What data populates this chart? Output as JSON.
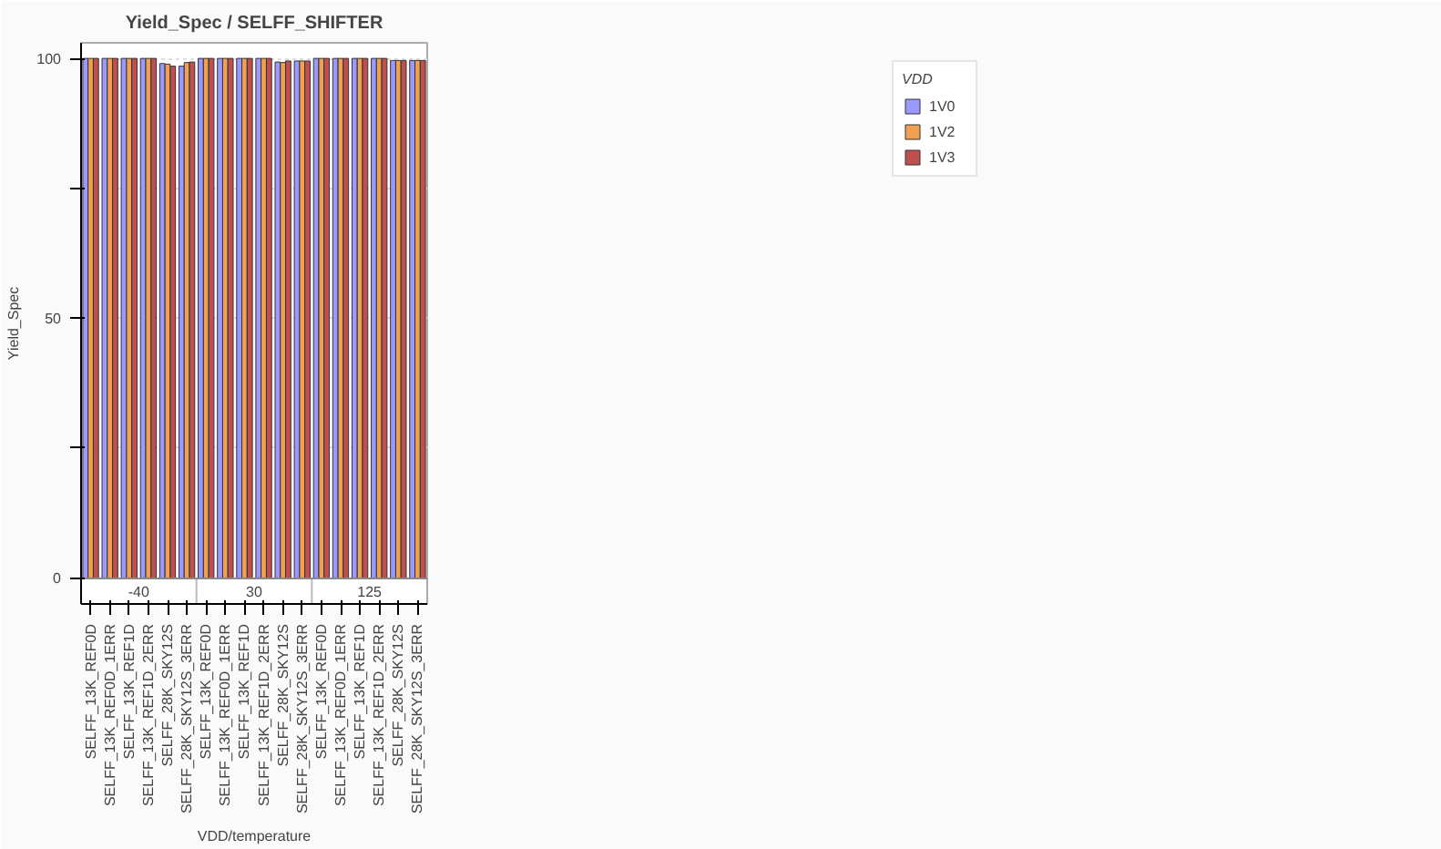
{
  "chart_data": {
    "type": "bar",
    "title": "Yield_Spec / SELFF_SHIFTER",
    "xlabel": "VDD/temperature",
    "ylabel": "Yield_Spec",
    "legend_title": "VDD",
    "categories": [
      "SELFF_13K_REF0D",
      "SELFF_13K_REF0D_1ERR",
      "SELFF_13K_REF1D",
      "SELFF_13K_REF1D_2ERR",
      "SELFF_28K_SKY12S",
      "SELFF_28K_SKY12S_3ERR",
      "SELFF_13K_REF0D",
      "SELFF_13K_REF0D_1ERR",
      "SELFF_13K_REF1D",
      "SELFF_13K_REF1D_2ERR",
      "SELFF_28K_SKY12S",
      "SELFF_28K_SKY12S_3ERR",
      "SELFF_13K_REF0D",
      "SELFF_13K_REF0D_1ERR",
      "SELFF_13K_REF1D",
      "SELFF_13K_REF1D_2ERR",
      "SELFF_28K_SKY12S",
      "SELFF_28K_SKY12S_3ERR"
    ],
    "series": [
      {
        "name": "1V0",
        "color": "#9999ff",
        "values": [
          100,
          100,
          100,
          100,
          99,
          98.5,
          100,
          100,
          100,
          100,
          99.3,
          99.5,
          100,
          100,
          100,
          100,
          99.6,
          99.6
        ]
      },
      {
        "name": "1V2",
        "color": "#f0a050",
        "values": [
          100,
          100,
          100,
          100,
          98.9,
          99.2,
          100,
          100,
          100,
          100,
          99.2,
          99.5,
          100,
          100,
          100,
          100,
          99.6,
          99.6
        ]
      },
      {
        "name": "1V3",
        "color": "#c05050",
        "values": [
          100,
          100,
          100,
          100,
          98.5,
          99.3,
          100,
          100,
          100,
          100,
          99.5,
          99.5,
          100,
          100,
          100,
          100,
          99.6,
          99.6
        ]
      }
    ],
    "annotations": [
      "-40",
      "30",
      "125"
    ],
    "ylim": [
      -5,
      103
    ],
    "yticks": [
      0,
      {
        "value": 25,
        "label": null
      },
      50,
      {
        "value": 75,
        "label": null
      },
      100
    ],
    "grid": "y",
    "legend": "top right"
  }
}
